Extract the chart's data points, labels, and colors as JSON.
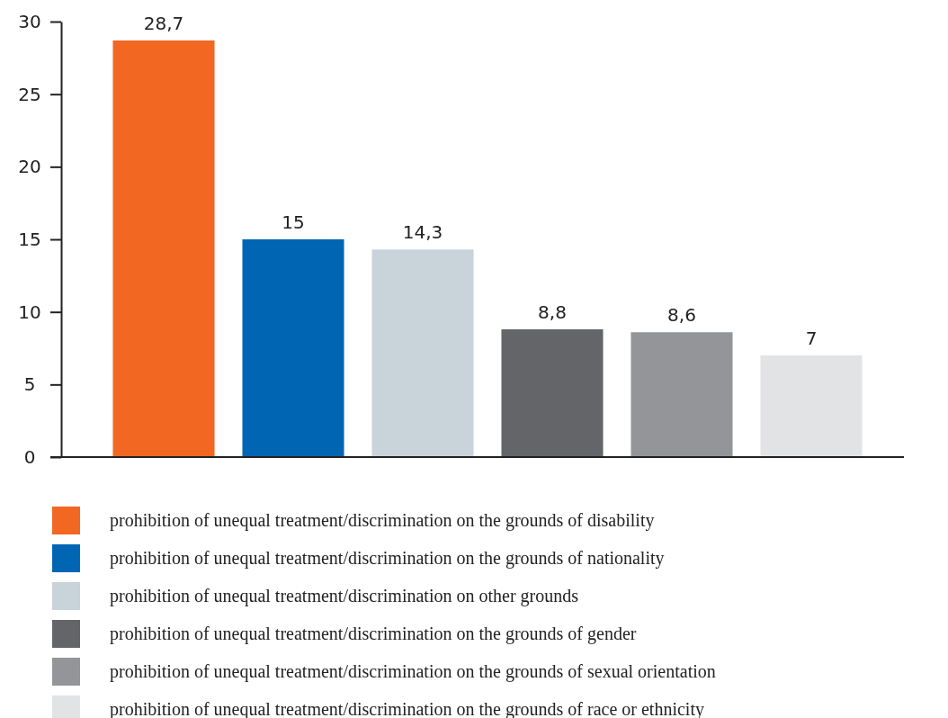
{
  "chart_data": {
    "type": "bar",
    "categories": [
      null,
      null,
      null,
      null,
      null,
      null
    ],
    "ylim": [
      0,
      30
    ],
    "yticks": [
      0,
      5,
      10,
      15,
      20,
      25,
      30
    ],
    "grid": false,
    "legend": "bottom",
    "series": [
      {
        "name": "prohibition of unequal treatment/discrimination on the grounds of disability",
        "color": "#f26722",
        "values": [
          28.7,
          null,
          null,
          null,
          null,
          null
        ],
        "value_labels": [
          "28,7",
          null,
          null,
          null,
          null,
          null
        ]
      },
      {
        "name": "prohibition of unequal treatment/discrimination on the grounds of nationality",
        "color": "#0066b3",
        "values": [
          null,
          15,
          null,
          null,
          null,
          null
        ],
        "value_labels": [
          null,
          "15",
          null,
          null,
          null,
          null
        ]
      },
      {
        "name": "prohibition of unequal treatment/discrimination on other grounds",
        "color": "#c8d3da",
        "values": [
          null,
          null,
          14.3,
          null,
          null,
          null
        ],
        "value_labels": [
          null,
          null,
          "14,3",
          null,
          null,
          null
        ]
      },
      {
        "name": "prohibition of unequal treatment/discrimination on the grounds of gender",
        "color": "#646569",
        "values": [
          null,
          null,
          null,
          8.8,
          null,
          null
        ],
        "value_labels": [
          null,
          null,
          null,
          "8,8",
          null,
          null
        ]
      },
      {
        "name": "prohibition of unequal treatment/discrimination on the grounds of sexual orientation",
        "color": "#939598",
        "values": [
          null,
          null,
          null,
          null,
          8.6,
          null
        ],
        "value_labels": [
          null,
          null,
          null,
          null,
          "8,6",
          null
        ]
      },
      {
        "name": "prohibition of unequal treatment/discrimination on the grounds of race or ethnicity",
        "color": "#e2e3e5",
        "values": [
          null,
          null,
          null,
          null,
          null,
          7
        ],
        "value_labels": [
          null,
          null,
          null,
          null,
          null,
          "7"
        ]
      }
    ]
  }
}
